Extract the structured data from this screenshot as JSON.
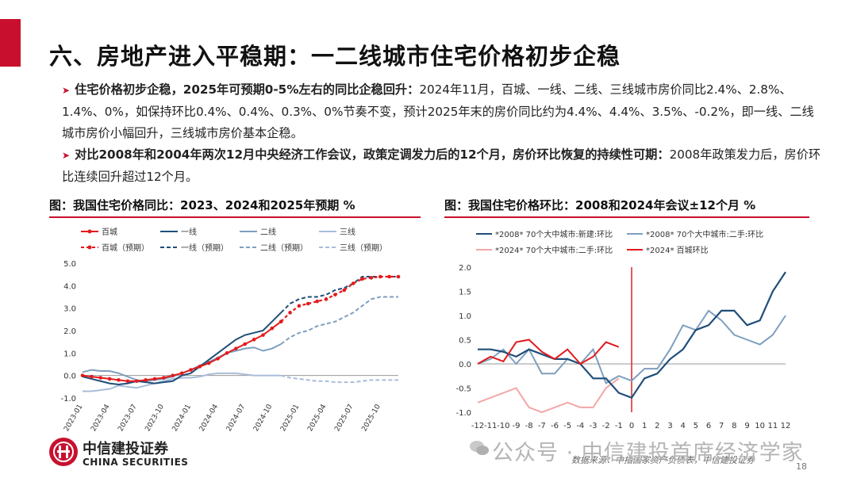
{
  "page": {
    "title": "六、房地产进入平稳期：一二线城市住宅价格初步企稳",
    "page_number": "18"
  },
  "bullets": [
    {
      "bold": "住宅价格初步企稳，2025年可预期0-5%左右的同比企稳回升：",
      "text": "2024年11月，百城、一线、二线、三线城市房价同比2.4%、2.8%、1.4%、0%，如保持环比0.4%、0.4%、0.3%、0%节奏不变，预计2025年末的房价同比约为4.4%、4.4%、3.5%、-0.2%，即一线、二线城市房价小幅回升，三线城市房价基本企稳。"
    },
    {
      "bold": "对比2008年和2004年两次12月中央经济工作会议，政策定调发力后的12个月，房价环比恢复的持续性可期：",
      "text": "2008年政策发力后，房价环比连续回升超过12个月。"
    }
  ],
  "figure_left_title": "图：我国住宅价格同比：2023、2024和2025年预期 %",
  "figure_right_title": "图：我国住宅价格环比：2008和2024年会议±12个月 %",
  "footer": {
    "logo_cn": "中信建投证券",
    "logo_en": "CHINA SECURITIES",
    "source": "数据来源：中指国家资产负债表，中信建投证券",
    "watermark": "公众号 · 中信建投首席经济学家"
  },
  "colors": {
    "red": "#e31a1c",
    "navy": "#1f4e79",
    "steel": "#7f9fbf",
    "light": "#a9bcd8",
    "pink": "#f4a6a6",
    "accent": "#c8102e"
  },
  "chart_data": [
    {
      "type": "line",
      "ylim": [
        -1.0,
        5.0
      ],
      "yticks": [
        "-1.0",
        "0.0",
        "1.0",
        "2.0",
        "3.0",
        "4.0",
        "5.0"
      ],
      "x_labels": [
        "2023-01",
        "2023-04",
        "2023-07",
        "2023-10",
        "2024-01",
        "2024-04",
        "2024-07",
        "2024-10",
        "2025-01",
        "2025-04",
        "2025-07",
        "2025-10"
      ],
      "legend": [
        "百城",
        "一线",
        "二线",
        "三线",
        "百城（预期）",
        "一线（预期）",
        "二线（预期）",
        "三线（预期）"
      ],
      "series": [
        {
          "name": "百城",
          "start": 0,
          "values": [
            0.0,
            -0.05,
            -0.1,
            -0.15,
            -0.2,
            -0.25,
            -0.25,
            -0.2,
            -0.15,
            -0.1,
            0.0,
            0.1,
            0.25,
            0.4,
            0.55,
            0.75,
            1.0,
            1.2,
            1.4,
            1.6,
            1.8,
            2.1,
            2.4
          ]
        },
        {
          "name": "一线",
          "start": 0,
          "values": [
            -0.05,
            -0.15,
            -0.25,
            -0.35,
            -0.4,
            -0.35,
            -0.25,
            -0.3,
            -0.35,
            -0.3,
            -0.25,
            0.0,
            0.1,
            0.4,
            0.7,
            1.0,
            1.3,
            1.6,
            1.8,
            1.9,
            2.0,
            2.4,
            2.8
          ]
        },
        {
          "name": "二线",
          "start": 0,
          "values": [
            0.15,
            0.25,
            0.2,
            0.2,
            0.1,
            -0.05,
            -0.2,
            -0.25,
            -0.2,
            -0.15,
            -0.05,
            0.1,
            0.25,
            0.45,
            0.6,
            0.8,
            1.0,
            1.1,
            1.2,
            1.25,
            1.1,
            1.2,
            1.4
          ]
        },
        {
          "name": "三线",
          "start": 0,
          "values": [
            -0.7,
            -0.7,
            -0.65,
            -0.6,
            -0.45,
            -0.5,
            -0.55,
            -0.45,
            -0.35,
            -0.25,
            -0.15,
            -0.1,
            -0.1,
            -0.05,
            0.05,
            0.1,
            0.1,
            0.1,
            0.05,
            0.0,
            0.0,
            0.0,
            0.0
          ]
        },
        {
          "name": "百城（预期）",
          "start": 22,
          "values": [
            2.4,
            2.8,
            3.1,
            3.2,
            3.3,
            3.4,
            3.6,
            3.8,
            4.1,
            4.3,
            4.35,
            4.4,
            4.4,
            4.4
          ]
        },
        {
          "name": "一线（预期）",
          "start": 22,
          "values": [
            2.8,
            3.2,
            3.4,
            3.5,
            3.5,
            3.6,
            3.8,
            3.9,
            4.1,
            4.4,
            4.4,
            4.4,
            4.4,
            4.4
          ]
        },
        {
          "name": "二线（预期）",
          "start": 22,
          "values": [
            1.4,
            1.7,
            1.9,
            2.0,
            2.2,
            2.3,
            2.4,
            2.6,
            2.8,
            3.1,
            3.4,
            3.5,
            3.5,
            3.5
          ]
        },
        {
          "name": "三线（预期）",
          "start": 22,
          "values": [
            0.0,
            -0.1,
            -0.15,
            -0.2,
            -0.25,
            -0.25,
            -0.3,
            -0.3,
            -0.3,
            -0.25,
            -0.2,
            -0.2,
            -0.2,
            -0.2
          ]
        }
      ]
    },
    {
      "type": "line",
      "ylim": [
        -1.0,
        2.0
      ],
      "yticks": [
        "-1.0",
        "-0.5",
        "0.0",
        "0.5",
        "1.0",
        "1.5",
        "2.0"
      ],
      "x_labels": [
        "-12",
        "-11",
        "-10",
        "-9",
        "-8",
        "-7",
        "-6",
        "-5",
        "-4",
        "-3",
        "-2",
        "-1",
        "0",
        "1",
        "2",
        "3",
        "4",
        "5",
        "6",
        "7",
        "8",
        "9",
        "10",
        "11",
        "12"
      ],
      "x": [
        -12,
        -11,
        -10,
        -9,
        -8,
        -7,
        -6,
        -5,
        -4,
        -3,
        -2,
        -1,
        0,
        1,
        2,
        3,
        4,
        5,
        6,
        7,
        8,
        9,
        10,
        11,
        12
      ],
      "legend": [
        "*2008* 70个大中城市:新建:环比",
        "*2008* 70个大中城市:二手:环比",
        "*2024* 70个大中城市:二手:环比",
        "*2024* 百城环比"
      ],
      "series": [
        {
          "name": "*2008* 70个大中城市:新建:环比",
          "x": [
            -12,
            -11,
            -10,
            -9,
            -8,
            -7,
            -6,
            -5,
            -4,
            -3,
            -2,
            -1,
            0,
            1,
            2,
            3,
            4,
            5,
            6,
            7,
            8,
            9,
            10,
            11,
            12
          ],
          "values": [
            0.3,
            0.3,
            0.25,
            0.15,
            0.3,
            0.2,
            0.1,
            0.1,
            0.0,
            -0.3,
            -0.3,
            -0.6,
            -0.7,
            -0.3,
            -0.2,
            0.1,
            0.3,
            0.7,
            0.8,
            1.1,
            1.1,
            0.8,
            0.9,
            1.5,
            1.9
          ]
        },
        {
          "name": "*2008* 70个大中城市:二手:环比",
          "x": [
            -12,
            -11,
            -10,
            -9,
            -8,
            -7,
            -6,
            -5,
            -4,
            -3,
            -2,
            -1,
            0,
            1,
            2,
            3,
            4,
            5,
            6,
            7,
            8,
            9,
            10,
            11,
            12
          ],
          "values": [
            0.0,
            0.1,
            0.3,
            0.0,
            0.3,
            -0.2,
            -0.2,
            0.1,
            0.0,
            0.3,
            -0.4,
            -0.25,
            -0.35,
            -0.1,
            -0.1,
            0.3,
            0.8,
            0.7,
            1.1,
            0.9,
            0.6,
            0.5,
            0.4,
            0.6,
            1.0
          ]
        },
        {
          "name": "*2024* 70个大中城市:二手:环比",
          "x": [
            -12,
            -11,
            -10,
            -9,
            -8,
            -7,
            -6,
            -5,
            -4,
            -3,
            -2,
            -1
          ],
          "values": [
            -0.8,
            -0.7,
            -0.6,
            -0.5,
            -0.9,
            -1.0,
            -0.9,
            -0.8,
            -0.9,
            -0.9,
            -0.5,
            -0.3
          ]
        },
        {
          "name": "*2024* 百城环比",
          "x": [
            -12,
            -11,
            -10,
            -9,
            -8,
            -7,
            -6,
            -5,
            -4,
            -3,
            -2,
            -1
          ],
          "values": [
            0.0,
            0.15,
            0.05,
            0.45,
            0.5,
            0.25,
            0.1,
            0.3,
            0.0,
            0.15,
            0.45,
            0.35
          ]
        }
      ]
    }
  ]
}
